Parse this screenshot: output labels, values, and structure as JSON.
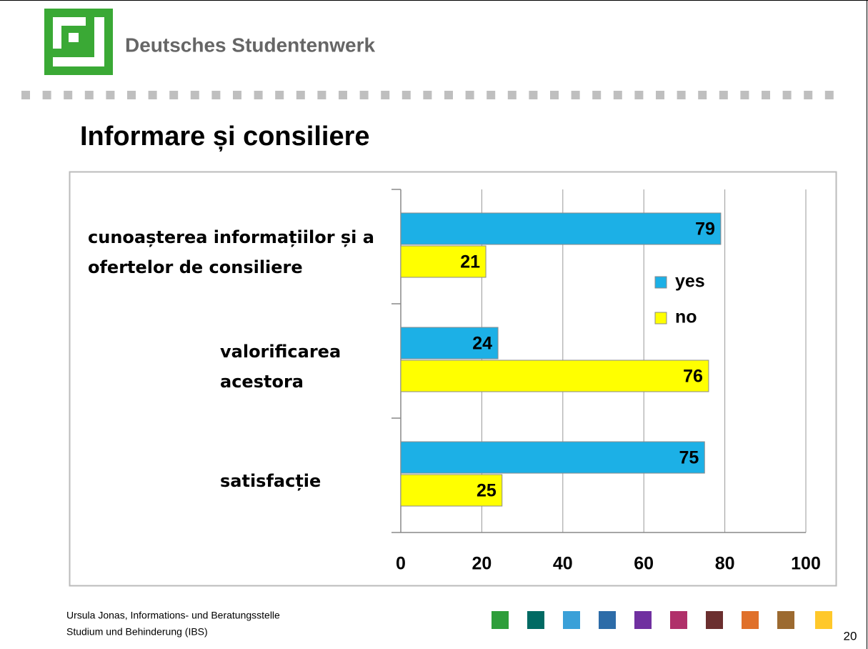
{
  "header": {
    "brand": "Deutsches Studentenwerk"
  },
  "chart_data": {
    "type": "bar",
    "orientation": "horizontal",
    "title": "Informare și consiliere",
    "categories": [
      "cunoașterea informațiilor și a ofertelor de consiliere",
      "valorificarea acestora",
      "satisfacție"
    ],
    "series": [
      {
        "name": "yes",
        "color": "#1cb0e6",
        "values": [
          79,
          24,
          75
        ]
      },
      {
        "name": "no",
        "color": "#ffff00",
        "values": [
          21,
          76,
          25
        ]
      }
    ],
    "xlim": [
      0,
      100
    ],
    "xticks": [
      0,
      20,
      40,
      60,
      80,
      100
    ],
    "grid": true,
    "legend": "right"
  },
  "footer": {
    "lines": [
      "Ursula Jonas, Informations- und Beratungsstelle",
      "Studium und Behinderung (IBS)"
    ],
    "page_number": "20"
  }
}
